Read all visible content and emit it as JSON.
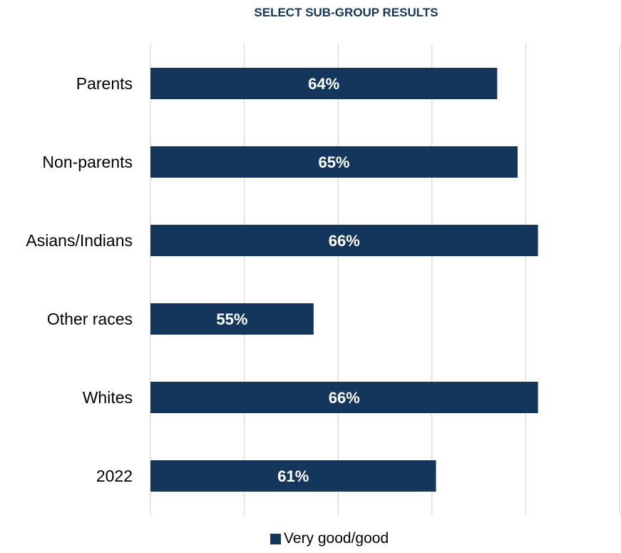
{
  "chart_data": {
    "type": "bar",
    "orientation": "horizontal",
    "title": "SELECT SUB-GROUP RESULTS",
    "categories": [
      "Parents",
      "Non-parents",
      "Asians/Indians",
      "Other races",
      "Whites",
      "2022"
    ],
    "series": [
      {
        "name": "Very good/good",
        "values": [
          64,
          65,
          66,
          55,
          66,
          61
        ]
      }
    ],
    "data_labels": [
      "64%",
      "65%",
      "66%",
      "55%",
      "66%",
      "61%"
    ],
    "xlim": [
      47,
      70
    ],
    "grid": true,
    "legend_position": "bottom",
    "colors": {
      "bar": "#14365d",
      "label": "#ffffff",
      "title": "#14365d",
      "grid": "#d9d9d9"
    }
  }
}
